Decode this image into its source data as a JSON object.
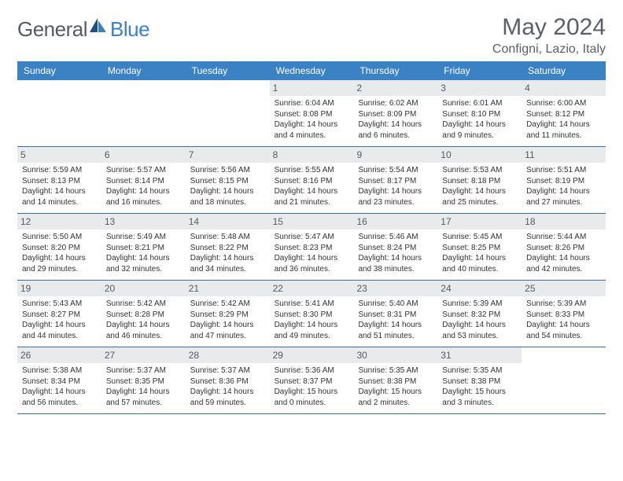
{
  "brand": {
    "part1": "General",
    "part2": "Blue"
  },
  "title": "May 2024",
  "location": "Configni, Lazio, Italy",
  "colors": {
    "header_bg": "#3b82c4",
    "header_text": "#ffffff",
    "daynum_bg": "#e8eaec",
    "row_border": "#3b6ea0",
    "text": "#555b63"
  },
  "day_names": [
    "Sunday",
    "Monday",
    "Tuesday",
    "Wednesday",
    "Thursday",
    "Friday",
    "Saturday"
  ],
  "weeks": [
    [
      {
        "n": "",
        "empty": true
      },
      {
        "n": "",
        "empty": true
      },
      {
        "n": "",
        "empty": true
      },
      {
        "n": "1",
        "sunrise": "Sunrise: 6:04 AM",
        "sunset": "Sunset: 8:08 PM",
        "daylight": "Daylight: 14 hours and 4 minutes."
      },
      {
        "n": "2",
        "sunrise": "Sunrise: 6:02 AM",
        "sunset": "Sunset: 8:09 PM",
        "daylight": "Daylight: 14 hours and 6 minutes."
      },
      {
        "n": "3",
        "sunrise": "Sunrise: 6:01 AM",
        "sunset": "Sunset: 8:10 PM",
        "daylight": "Daylight: 14 hours and 9 minutes."
      },
      {
        "n": "4",
        "sunrise": "Sunrise: 6:00 AM",
        "sunset": "Sunset: 8:12 PM",
        "daylight": "Daylight: 14 hours and 11 minutes."
      }
    ],
    [
      {
        "n": "5",
        "sunrise": "Sunrise: 5:59 AM",
        "sunset": "Sunset: 8:13 PM",
        "daylight": "Daylight: 14 hours and 14 minutes."
      },
      {
        "n": "6",
        "sunrise": "Sunrise: 5:57 AM",
        "sunset": "Sunset: 8:14 PM",
        "daylight": "Daylight: 14 hours and 16 minutes."
      },
      {
        "n": "7",
        "sunrise": "Sunrise: 5:56 AM",
        "sunset": "Sunset: 8:15 PM",
        "daylight": "Daylight: 14 hours and 18 minutes."
      },
      {
        "n": "8",
        "sunrise": "Sunrise: 5:55 AM",
        "sunset": "Sunset: 8:16 PM",
        "daylight": "Daylight: 14 hours and 21 minutes."
      },
      {
        "n": "9",
        "sunrise": "Sunrise: 5:54 AM",
        "sunset": "Sunset: 8:17 PM",
        "daylight": "Daylight: 14 hours and 23 minutes."
      },
      {
        "n": "10",
        "sunrise": "Sunrise: 5:53 AM",
        "sunset": "Sunset: 8:18 PM",
        "daylight": "Daylight: 14 hours and 25 minutes."
      },
      {
        "n": "11",
        "sunrise": "Sunrise: 5:51 AM",
        "sunset": "Sunset: 8:19 PM",
        "daylight": "Daylight: 14 hours and 27 minutes."
      }
    ],
    [
      {
        "n": "12",
        "sunrise": "Sunrise: 5:50 AM",
        "sunset": "Sunset: 8:20 PM",
        "daylight": "Daylight: 14 hours and 29 minutes."
      },
      {
        "n": "13",
        "sunrise": "Sunrise: 5:49 AM",
        "sunset": "Sunset: 8:21 PM",
        "daylight": "Daylight: 14 hours and 32 minutes."
      },
      {
        "n": "14",
        "sunrise": "Sunrise: 5:48 AM",
        "sunset": "Sunset: 8:22 PM",
        "daylight": "Daylight: 14 hours and 34 minutes."
      },
      {
        "n": "15",
        "sunrise": "Sunrise: 5:47 AM",
        "sunset": "Sunset: 8:23 PM",
        "daylight": "Daylight: 14 hours and 36 minutes."
      },
      {
        "n": "16",
        "sunrise": "Sunrise: 5:46 AM",
        "sunset": "Sunset: 8:24 PM",
        "daylight": "Daylight: 14 hours and 38 minutes."
      },
      {
        "n": "17",
        "sunrise": "Sunrise: 5:45 AM",
        "sunset": "Sunset: 8:25 PM",
        "daylight": "Daylight: 14 hours and 40 minutes."
      },
      {
        "n": "18",
        "sunrise": "Sunrise: 5:44 AM",
        "sunset": "Sunset: 8:26 PM",
        "daylight": "Daylight: 14 hours and 42 minutes."
      }
    ],
    [
      {
        "n": "19",
        "sunrise": "Sunrise: 5:43 AM",
        "sunset": "Sunset: 8:27 PM",
        "daylight": "Daylight: 14 hours and 44 minutes."
      },
      {
        "n": "20",
        "sunrise": "Sunrise: 5:42 AM",
        "sunset": "Sunset: 8:28 PM",
        "daylight": "Daylight: 14 hours and 46 minutes."
      },
      {
        "n": "21",
        "sunrise": "Sunrise: 5:42 AM",
        "sunset": "Sunset: 8:29 PM",
        "daylight": "Daylight: 14 hours and 47 minutes."
      },
      {
        "n": "22",
        "sunrise": "Sunrise: 5:41 AM",
        "sunset": "Sunset: 8:30 PM",
        "daylight": "Daylight: 14 hours and 49 minutes."
      },
      {
        "n": "23",
        "sunrise": "Sunrise: 5:40 AM",
        "sunset": "Sunset: 8:31 PM",
        "daylight": "Daylight: 14 hours and 51 minutes."
      },
      {
        "n": "24",
        "sunrise": "Sunrise: 5:39 AM",
        "sunset": "Sunset: 8:32 PM",
        "daylight": "Daylight: 14 hours and 53 minutes."
      },
      {
        "n": "25",
        "sunrise": "Sunrise: 5:39 AM",
        "sunset": "Sunset: 8:33 PM",
        "daylight": "Daylight: 14 hours and 54 minutes."
      }
    ],
    [
      {
        "n": "26",
        "sunrise": "Sunrise: 5:38 AM",
        "sunset": "Sunset: 8:34 PM",
        "daylight": "Daylight: 14 hours and 56 minutes."
      },
      {
        "n": "27",
        "sunrise": "Sunrise: 5:37 AM",
        "sunset": "Sunset: 8:35 PM",
        "daylight": "Daylight: 14 hours and 57 minutes."
      },
      {
        "n": "28",
        "sunrise": "Sunrise: 5:37 AM",
        "sunset": "Sunset: 8:36 PM",
        "daylight": "Daylight: 14 hours and 59 minutes."
      },
      {
        "n": "29",
        "sunrise": "Sunrise: 5:36 AM",
        "sunset": "Sunset: 8:37 PM",
        "daylight": "Daylight: 15 hours and 0 minutes."
      },
      {
        "n": "30",
        "sunrise": "Sunrise: 5:35 AM",
        "sunset": "Sunset: 8:38 PM",
        "daylight": "Daylight: 15 hours and 2 minutes."
      },
      {
        "n": "31",
        "sunrise": "Sunrise: 5:35 AM",
        "sunset": "Sunset: 8:38 PM",
        "daylight": "Daylight: 15 hours and 3 minutes."
      },
      {
        "n": "",
        "empty": true
      }
    ]
  ]
}
